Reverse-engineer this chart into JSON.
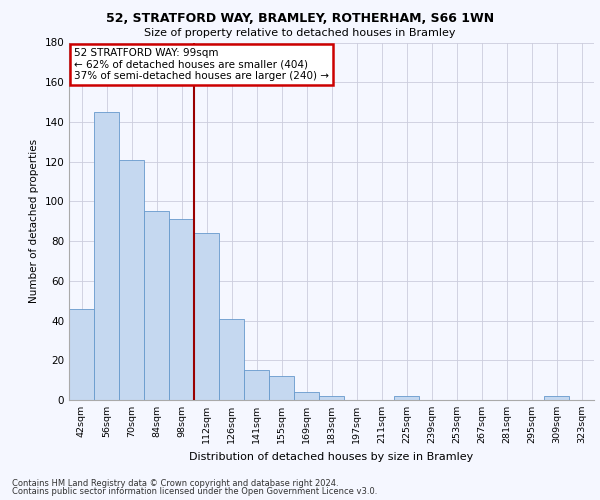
{
  "title1": "52, STRATFORD WAY, BRAMLEY, ROTHERHAM, S66 1WN",
  "title2": "Size of property relative to detached houses in Bramley",
  "xlabel": "Distribution of detached houses by size in Bramley",
  "ylabel": "Number of detached properties",
  "categories": [
    "42sqm",
    "56sqm",
    "70sqm",
    "84sqm",
    "98sqm",
    "112sqm",
    "126sqm",
    "141sqm",
    "155sqm",
    "169sqm",
    "183sqm",
    "197sqm",
    "211sqm",
    "225sqm",
    "239sqm",
    "253sqm",
    "267sqm",
    "281sqm",
    "295sqm",
    "309sqm",
    "323sqm"
  ],
  "values": [
    46,
    145,
    121,
    95,
    91,
    84,
    41,
    15,
    12,
    4,
    2,
    0,
    0,
    2,
    0,
    0,
    0,
    0,
    0,
    2,
    0
  ],
  "bar_color": "#c5d8f0",
  "bar_edge_color": "#6699cc",
  "vline_x": 4.5,
  "vline_color": "#990000",
  "annotation_text": "52 STRATFORD WAY: 99sqm\n← 62% of detached houses are smaller (404)\n37% of semi-detached houses are larger (240) →",
  "annotation_box_color": "#ffffff",
  "annotation_box_edge": "#cc0000",
  "ylim": [
    0,
    180
  ],
  "yticks": [
    0,
    20,
    40,
    60,
    80,
    100,
    120,
    140,
    160,
    180
  ],
  "footer1": "Contains HM Land Registry data © Crown copyright and database right 2024.",
  "footer2": "Contains public sector information licensed under the Open Government Licence v3.0.",
  "bg_color": "#f5f7ff",
  "plot_bg": "#f5f7ff",
  "grid_color": "#ccccdd"
}
